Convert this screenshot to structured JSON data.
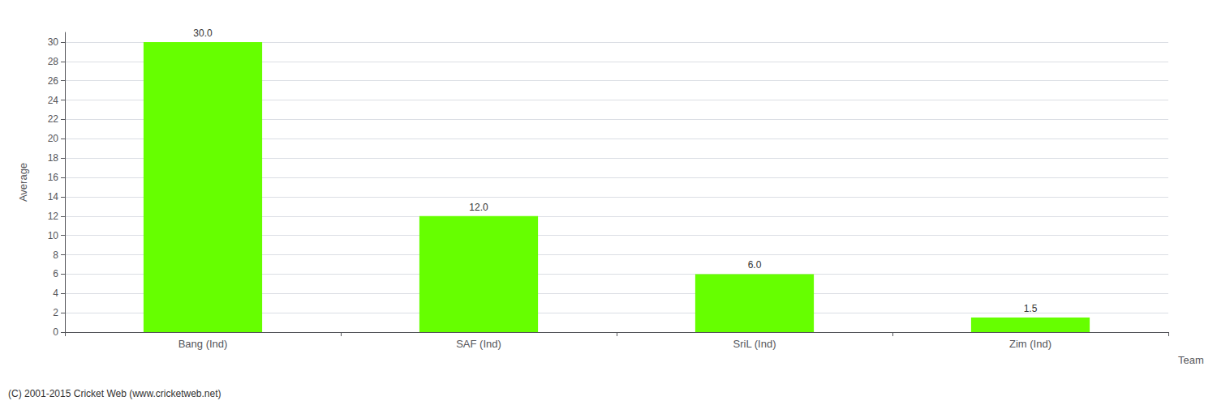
{
  "chart_data": {
    "type": "bar",
    "categories": [
      "Bang (Ind)",
      "SAF (Ind)",
      "SriL (Ind)",
      "Zim (Ind)"
    ],
    "values": [
      30.0,
      12.0,
      6.0,
      1.5
    ],
    "value_labels": [
      "30.0",
      "12.0",
      "6.0",
      "1.5"
    ],
    "data_labels": true,
    "color": "#66ff00",
    "xlabel": "Team",
    "ylabel": "Average",
    "ylim": [
      0,
      31
    ],
    "yticks": [
      0,
      2,
      4,
      6,
      8,
      10,
      12,
      14,
      16,
      18,
      20,
      22,
      24,
      26,
      28,
      30
    ],
    "grid": true,
    "annotations": [
      "(C) 2001-2015 Cricket Web (www.cricketweb.net)"
    ]
  }
}
